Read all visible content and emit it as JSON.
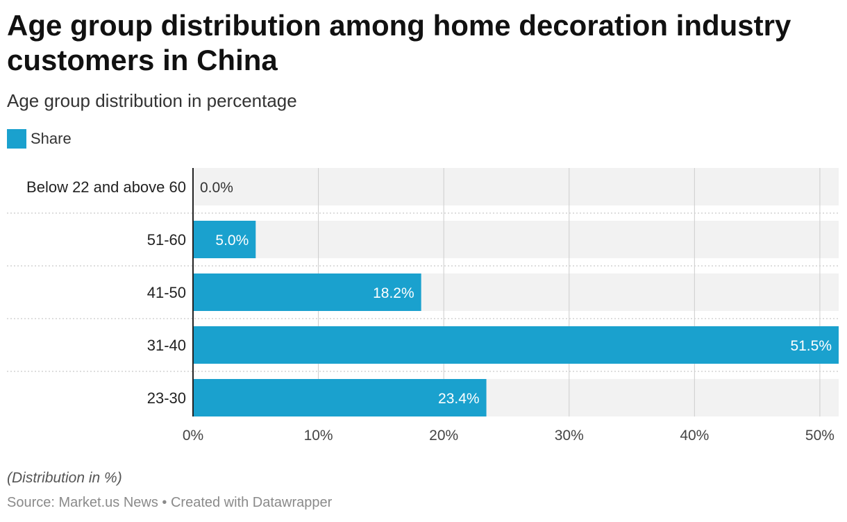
{
  "header": {
    "title": "Age group distribution among home decoration industry customers in China",
    "subtitle": "Age group distribution in percentage"
  },
  "legend": {
    "label": "Share",
    "color": "#1aa1ce"
  },
  "footer": {
    "note": "(Distribution in %)",
    "source": "Source: Market.us News • Created with Datawrapper"
  },
  "chart_data": {
    "type": "bar",
    "orientation": "horizontal",
    "categories": [
      "Below 22 and above 60",
      "51-60",
      "41-50",
      "31-40",
      "23-30"
    ],
    "series": [
      {
        "name": "Share",
        "values": [
          0.0,
          5.0,
          18.2,
          51.5,
          23.4
        ],
        "labels": [
          "0.0%",
          "5.0%",
          "18.2%",
          "51.5%",
          "23.4%"
        ],
        "color": "#1aa1ce"
      }
    ],
    "xlim": [
      0,
      51.5
    ],
    "x_ticks": [
      0,
      10,
      20,
      30,
      40,
      50
    ],
    "x_tick_labels": [
      "0%",
      "10%",
      "20%",
      "30%",
      "40%",
      "50%"
    ],
    "grid": true,
    "legend_position": "top-left",
    "colors": {
      "bar": "#1aa1ce",
      "track": "#f2f2f2",
      "grid": "#cccccc",
      "value_label_inside": "#ffffff",
      "value_label_outside": "#333333"
    }
  }
}
